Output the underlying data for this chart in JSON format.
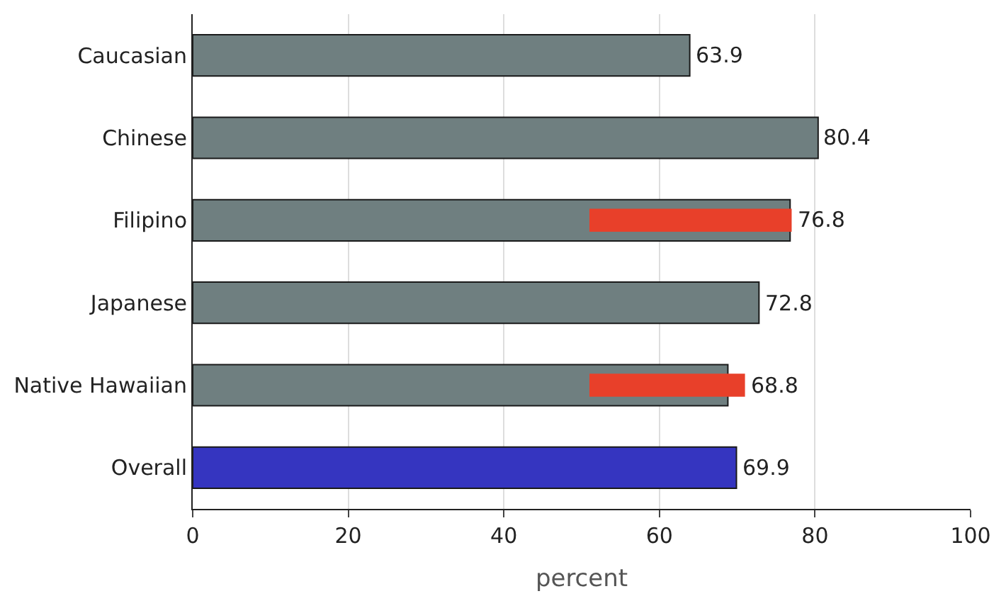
{
  "chart_data": {
    "type": "bar",
    "orientation": "horizontal",
    "xlabel": "percent",
    "categories": [
      "Caucasian",
      "Chinese",
      "Filipino",
      "Japanese",
      "Native Hawaiian",
      "Overall"
    ],
    "series": [
      {
        "colors": [
          "#6f7f80",
          "#6f7f80",
          "#6f7f80",
          "#6f7f80",
          "#6f7f80",
          "#3535c0"
        ],
        "values": [
          63.9,
          80.4,
          76.8,
          72.8,
          68.8,
          69.9
        ],
        "value_labels": [
          "63.9",
          "80.4",
          "76.8",
          "72.8",
          "68.8",
          "69.9"
        ]
      },
      {
        "color": "#e8402a",
        "values": [
          null,
          null,
          26,
          null,
          20,
          null
        ],
        "base": [
          null,
          null,
          51,
          null,
          51,
          null
        ]
      }
    ],
    "xlim": [
      0,
      100
    ],
    "xticks": [
      0,
      20,
      40,
      60,
      80,
      100
    ],
    "grid": "x"
  }
}
